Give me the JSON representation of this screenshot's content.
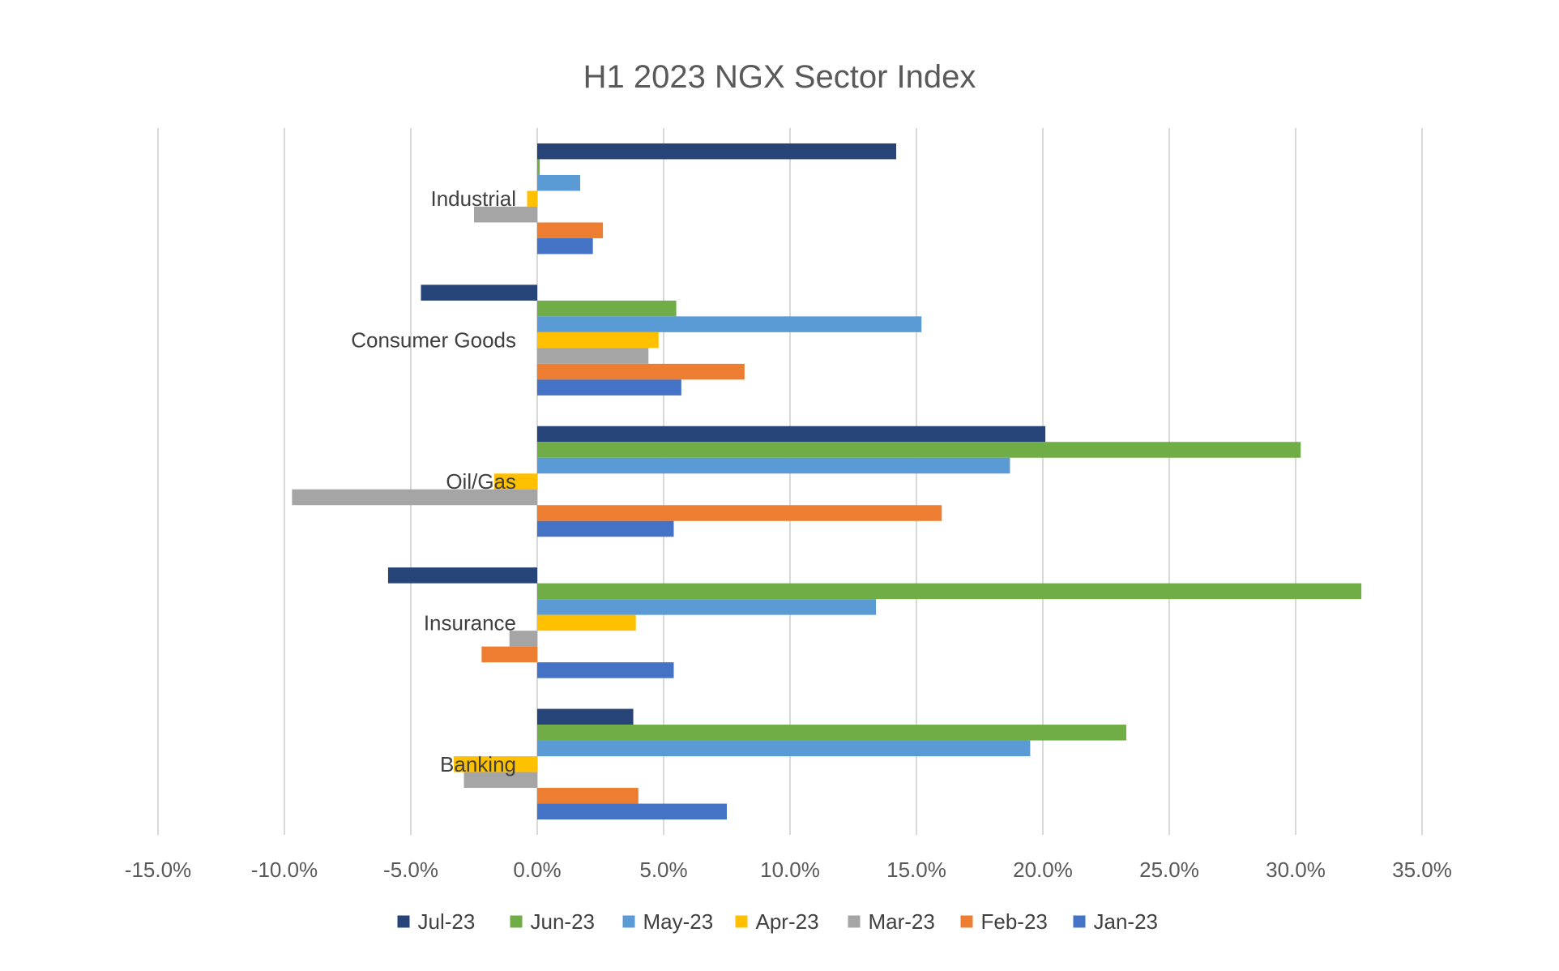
{
  "chart_data": {
    "type": "bar",
    "orientation": "horizontal",
    "title": "H1 2023 NGX Sector Index",
    "xlabel": "",
    "ylabel": "",
    "xlim": [
      -15,
      35
    ],
    "ticks": [
      "-15.0%",
      "-10.0%",
      "-5.0%",
      "0.0%",
      "5.0%",
      "10.0%",
      "15.0%",
      "20.0%",
      "25.0%",
      "30.0%",
      "35.0%"
    ],
    "grid": "vertical",
    "legend_position": "bottom",
    "categories": [
      "Industrial",
      "Consumer Goods",
      "Oil/Gas",
      "Insurance",
      "Banking"
    ],
    "series": [
      {
        "name": "Jul-23",
        "color": "#264478",
        "values": [
          14.2,
          -4.6,
          20.1,
          -5.9,
          3.8
        ]
      },
      {
        "name": "Jun-23",
        "color": "#70AD47",
        "values": [
          0.1,
          5.5,
          30.2,
          32.6,
          23.3
        ]
      },
      {
        "name": "May-23",
        "color": "#5B9BD5",
        "values": [
          1.7,
          15.2,
          18.7,
          13.4,
          19.5
        ]
      },
      {
        "name": "Apr-23",
        "color": "#FFC000",
        "values": [
          -0.4,
          4.8,
          -1.7,
          3.9,
          -3.3
        ]
      },
      {
        "name": "Mar-23",
        "color": "#A5A5A5",
        "values": [
          -2.5,
          4.4,
          -9.7,
          -1.1,
          -2.9
        ]
      },
      {
        "name": "Feb-23",
        "color": "#ED7D31",
        "values": [
          2.6,
          8.2,
          16.0,
          -2.2,
          4.0
        ]
      },
      {
        "name": "Jan-23",
        "color": "#4472C4",
        "values": [
          2.2,
          5.7,
          5.4,
          5.4,
          7.5
        ]
      }
    ]
  }
}
